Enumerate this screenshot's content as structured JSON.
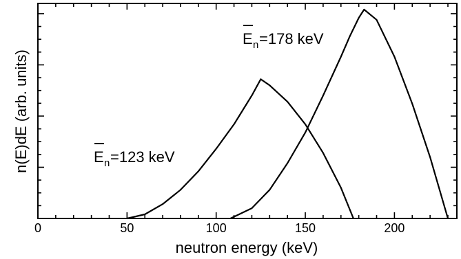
{
  "chart_data": {
    "type": "line",
    "title": "",
    "xlabel": "neutron energy (keV)",
    "ylabel": "n(E)dE (arb. units)",
    "xlim": [
      0,
      235
    ],
    "ylim": [
      0,
      1.05
    ],
    "x_ticks": [
      0,
      50,
      100,
      150,
      200
    ],
    "x_minor_step": 10,
    "y_tick_labels": "none",
    "y_minor_step": 0.0625,
    "grid": false,
    "legend": "none",
    "series": [
      {
        "annotation": "123 keV",
        "x": [
          50,
          60,
          70,
          80,
          90,
          100,
          110,
          115,
          120,
          125,
          130,
          140,
          150,
          160,
          170,
          177
        ],
        "y": [
          0.0,
          0.02,
          0.07,
          0.14,
          0.23,
          0.34,
          0.46,
          0.53,
          0.6,
          0.68,
          0.65,
          0.57,
          0.46,
          0.32,
          0.15,
          0.0
        ]
      },
      {
        "annotation": "178 keV",
        "x": [
          108,
          120,
          130,
          140,
          150,
          160,
          170,
          175,
          180,
          183,
          190,
          200,
          210,
          220,
          230
        ],
        "y": [
          0.0,
          0.05,
          0.14,
          0.27,
          0.42,
          0.6,
          0.79,
          0.89,
          0.98,
          1.02,
          0.97,
          0.79,
          0.56,
          0.3,
          0.0
        ]
      }
    ],
    "annotations": [
      {
        "symbol": "E",
        "subscript": "n",
        "text": "=123 keV",
        "near_series": 0
      },
      {
        "symbol": "E",
        "subscript": "n",
        "text": "=178 keV",
        "near_series": 1
      }
    ]
  }
}
